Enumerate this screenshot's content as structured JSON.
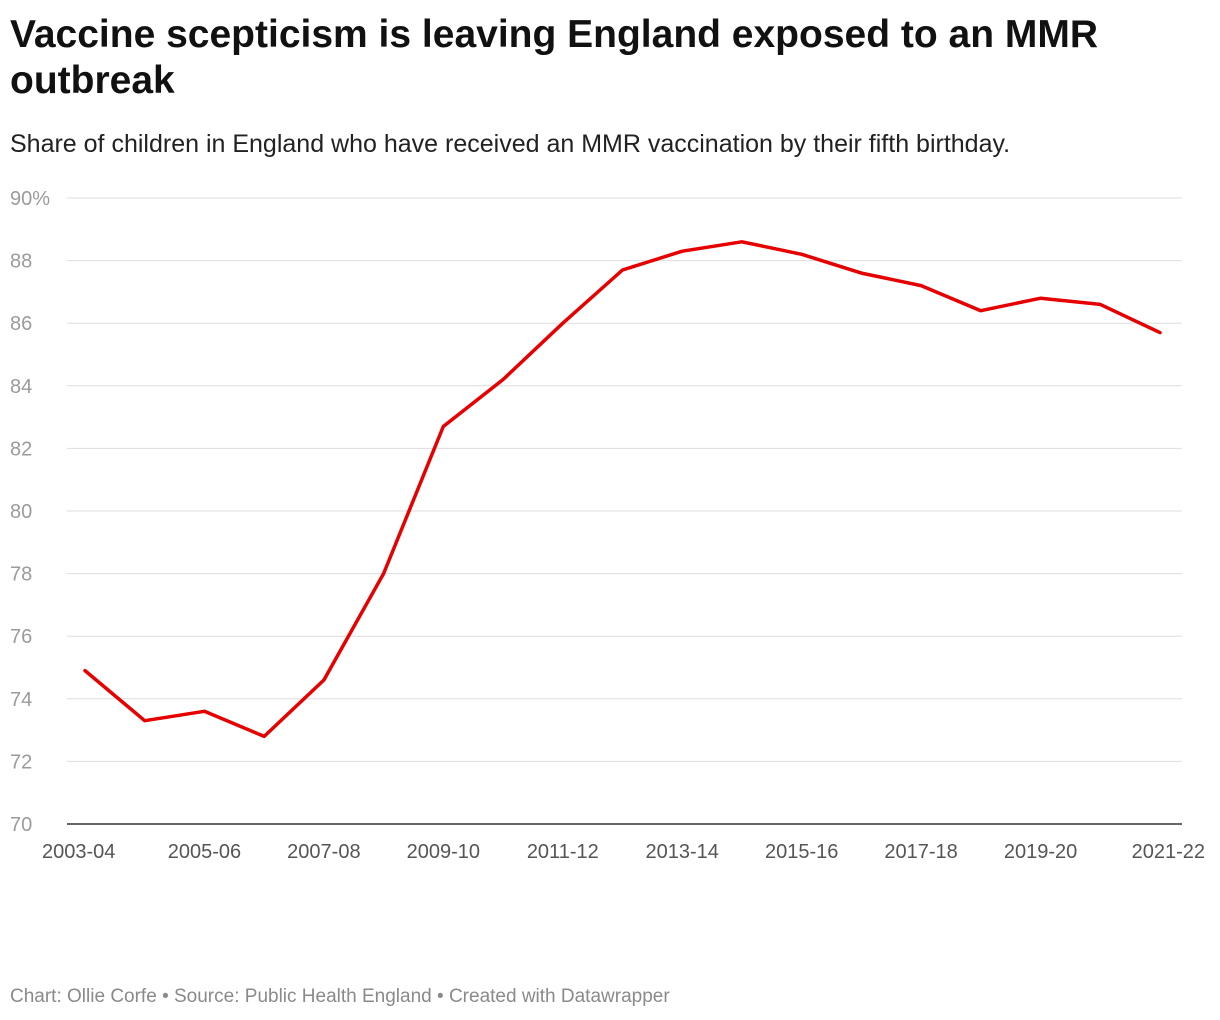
{
  "title": "Vaccine scepticism is leaving England exposed to an MMR outbreak",
  "subtitle": "Share of children in England who have received an MMR vaccination by their fifth birthday.",
  "footer": {
    "chart_label": "Chart:",
    "author": "Ollie Corfe",
    "source_label": "Source:",
    "source": "Public Health England",
    "created_with": "Created with Datawrapper"
  },
  "colors": {
    "line": "#e60000",
    "grid": "#dddddd",
    "axis": "#333333"
  },
  "chart_data": {
    "type": "line",
    "title": "Vaccine scepticism is leaving England exposed to an MMR outbreak",
    "subtitle": "Share of children in England who have received an MMR vaccination by their fifth birthday.",
    "xlabel": "",
    "ylabel": "",
    "ylim": [
      70,
      90
    ],
    "yticks": [
      70,
      72,
      74,
      76,
      78,
      80,
      82,
      84,
      86,
      88,
      90
    ],
    "ytick_labels": [
      "70",
      "72",
      "74",
      "76",
      "78",
      "80",
      "82",
      "84",
      "86",
      "88",
      "90%"
    ],
    "x": [
      "2003-04",
      "2004-05",
      "2005-06",
      "2006-07",
      "2007-08",
      "2008-09",
      "2009-10",
      "2010-11",
      "2011-12",
      "2012-13",
      "2013-14",
      "2014-15",
      "2015-16",
      "2016-17",
      "2017-18",
      "2018-19",
      "2019-20",
      "2020-21",
      "2021-22"
    ],
    "xtick_labels": [
      "2003-04",
      "2005-06",
      "2007-08",
      "2009-10",
      "2011-12",
      "2013-14",
      "2015-16",
      "2017-18",
      "2019-20",
      "2021-22"
    ],
    "grid": true,
    "legend": "none",
    "series": [
      {
        "values": [
          74.9,
          73.3,
          73.6,
          72.8,
          74.6,
          78.0,
          82.7,
          84.2,
          86.0,
          87.7,
          88.3,
          88.6,
          88.2,
          87.6,
          87.2,
          86.4,
          86.8,
          86.6,
          85.7
        ]
      }
    ]
  }
}
